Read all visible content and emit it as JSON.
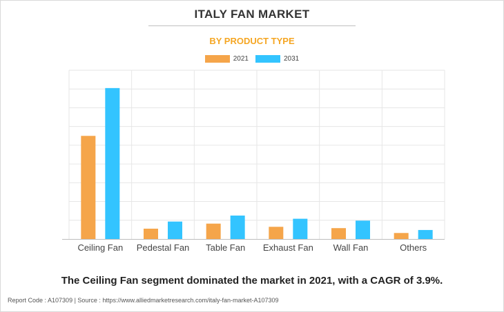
{
  "title": "ITALY FAN MARKET",
  "subtitle": "BY PRODUCT TYPE",
  "caption": "The Ceiling Fan segment dominated the market in 2021, with a CAGR of 3.9%.",
  "footer": "Report Code : A107309  |  Source : https://www.alliedmarketresearch.com/italy-fan-market-A107309",
  "colors": {
    "s2021": "#f5a54a",
    "s2031": "#33c4ff",
    "grid": "#e6e6e6",
    "axis": "#bdbdbd"
  },
  "chart_data": {
    "type": "bar",
    "categories": [
      "Ceiling Fan",
      "Pedestal Fan",
      "Table Fan",
      "Exhaust Fan",
      "Wall Fan",
      "Others"
    ],
    "series": [
      {
        "name": "2021",
        "values": [
          55,
          5.5,
          8.2,
          6.5,
          5.8,
          3.2
        ]
      },
      {
        "name": "2031",
        "values": [
          80.5,
          9.3,
          12.5,
          10.8,
          9.8,
          4.8
        ]
      }
    ],
    "ylim": [
      0,
      90
    ],
    "grid": true,
    "legend": "top-center",
    "xlabel": "",
    "ylabel": ""
  }
}
